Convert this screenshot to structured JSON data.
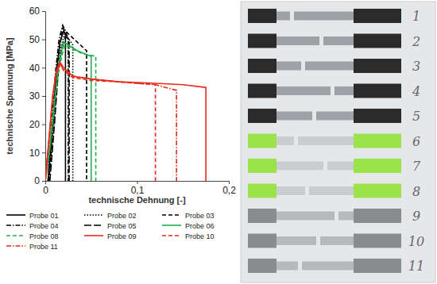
{
  "chart_data": {
    "type": "line",
    "x_label": "technische Dehnung [-]",
    "y_label": "technische Spannung [MPa]",
    "xlim": [
      0,
      0.2
    ],
    "ylim": [
      0,
      60
    ],
    "xticks": [
      0,
      {
        "value": 0.1,
        "label": "0,1"
      },
      {
        "value": 0.2,
        "label": "0,2"
      }
    ],
    "yticks": [
      0,
      10,
      20,
      30,
      40,
      50,
      60
    ],
    "grid": false,
    "legend": "bottom",
    "series": [
      {
        "name": "Probe 01",
        "color": "#000000",
        "line_style": "solid",
        "x": [
          0.003,
          0.008,
          0.012,
          0.016,
          0.02,
          0.022,
          0.022
        ],
        "values": [
          0,
          20,
          38,
          49,
          53,
          52,
          0
        ]
      },
      {
        "name": "Probe 02",
        "color": "#000000",
        "line_style": "dotted",
        "x": [
          0.004,
          0.009,
          0.013,
          0.017,
          0.021,
          0.026,
          0.03,
          0.03
        ],
        "values": [
          0,
          18,
          36,
          47,
          52,
          50,
          48,
          0
        ]
      },
      {
        "name": "Probe 03",
        "color": "#000000",
        "line_style": "dashed",
        "x": [
          0.004,
          0.008,
          0.012,
          0.016,
          0.019,
          0.025,
          0.035,
          0.045,
          0.045
        ],
        "values": [
          0,
          18,
          36,
          48,
          54,
          52,
          49,
          46,
          0
        ]
      },
      {
        "name": "Probe 04",
        "color": "#000000",
        "line_style": "dashdot",
        "x": [
          0.003,
          0.007,
          0.011,
          0.015,
          0.019,
          0.022,
          0.025,
          0.025
        ],
        "values": [
          0,
          20,
          38,
          50,
          55,
          53,
          50,
          0
        ]
      },
      {
        "name": "Probe 05",
        "color": "#000000",
        "line_style": "longdash",
        "x": [
          0.005,
          0.01,
          0.014,
          0.018,
          0.022,
          0.026,
          0.026
        ],
        "values": [
          0,
          20,
          38,
          47,
          51,
          50,
          0
        ]
      },
      {
        "name": "Probe 06",
        "color": "#1fae4b",
        "line_style": "solid",
        "x": [
          0,
          0.005,
          0.01,
          0.015,
          0.02,
          0.025,
          0.035,
          0.05,
          0.05
        ],
        "values": [
          0,
          12,
          28,
          42,
          49,
          48,
          46,
          44,
          0
        ]
      },
      {
        "name": "Probe 08",
        "color": "#1fae4b",
        "line_style": "dashed",
        "x": [
          0,
          0.005,
          0.01,
          0.015,
          0.021,
          0.027,
          0.04,
          0.055,
          0.055
        ],
        "values": [
          0,
          11,
          27,
          40,
          48,
          47,
          45,
          44,
          0
        ]
      },
      {
        "name": "Probe 09",
        "color": "#e8291c",
        "line_style": "solid",
        "x": [
          0,
          0.004,
          0.008,
          0.012,
          0.016,
          0.02,
          0.03,
          0.05,
          0.08,
          0.12,
          0.15,
          0.175,
          0.175
        ],
        "values": [
          0,
          15,
          30,
          39,
          42,
          40,
          37,
          36,
          35,
          34.5,
          34,
          33,
          0
        ]
      },
      {
        "name": "Probe 10",
        "color": "#e8291c",
        "line_style": "dashed",
        "x": [
          0,
          0.004,
          0.008,
          0.012,
          0.016,
          0.02,
          0.03,
          0.05,
          0.08,
          0.12,
          0.12
        ],
        "values": [
          0,
          14,
          29,
          38,
          41,
          39,
          36.5,
          35.5,
          35,
          34,
          0
        ]
      },
      {
        "name": "Probe 11",
        "color": "#e8291c",
        "line_style": "dashdot",
        "x": [
          0,
          0.004,
          0.008,
          0.012,
          0.016,
          0.02,
          0.03,
          0.05,
          0.08,
          0.12,
          0.143,
          0.143
        ],
        "values": [
          0,
          14,
          29,
          38,
          41.5,
          39.5,
          37,
          36,
          35,
          34,
          32,
          0
        ]
      }
    ]
  },
  "photo": {
    "specimens": [
      {
        "label": "1",
        "color": "#2b2b2b"
      },
      {
        "label": "2",
        "color": "#2b2b2b"
      },
      {
        "label": "3",
        "color": "#2b2b2b"
      },
      {
        "label": "4",
        "color": "#2b2b2b"
      },
      {
        "label": "5",
        "color": "#2b2b2b"
      },
      {
        "label": "6",
        "color": "#9be34a"
      },
      {
        "label": "7",
        "color": "#9be34a"
      },
      {
        "label": "8",
        "color": "#9be34a"
      },
      {
        "label": "9",
        "color": "#8a8d90"
      },
      {
        "label": "10",
        "color": "#8a8d90"
      },
      {
        "label": "11",
        "color": "#8a8d90"
      }
    ]
  }
}
